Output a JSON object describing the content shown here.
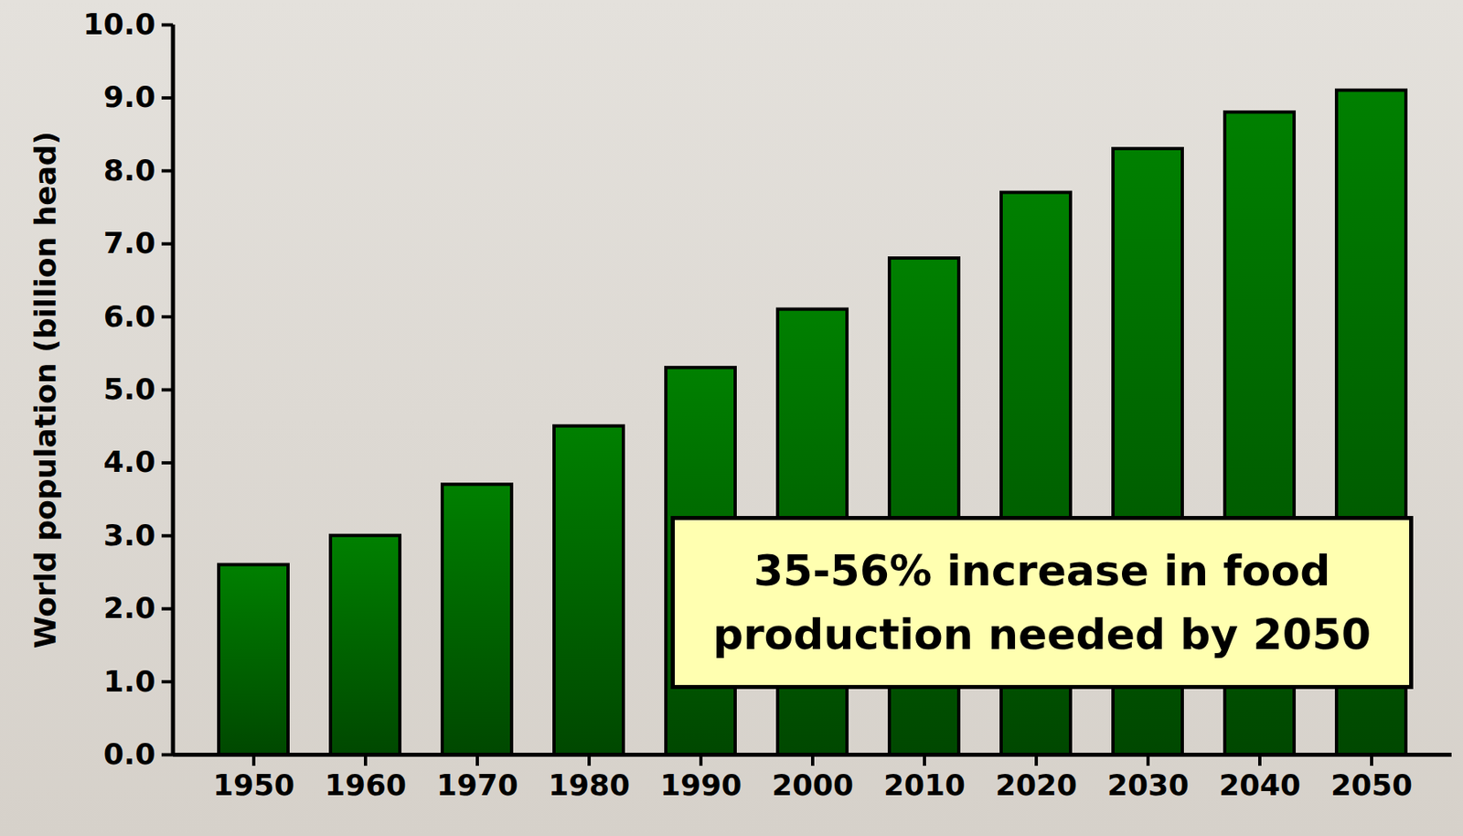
{
  "chart_data": {
    "type": "bar",
    "y_label": "World population (billion head)",
    "categories": [
      "1950",
      "1960",
      "1970",
      "1980",
      "1990",
      "2000",
      "2010",
      "2020",
      "2030",
      "2040",
      "2050"
    ],
    "values": [
      2.6,
      3.0,
      3.7,
      4.5,
      5.3,
      6.1,
      6.8,
      7.7,
      8.3,
      8.8,
      9.1
    ],
    "color": "#008000",
    "ylim": [
      0,
      10
    ],
    "yticks": [
      0,
      1,
      2,
      3,
      4,
      5,
      6,
      7,
      8,
      9,
      10
    ],
    "grid": false,
    "annotation": "35-56% increase in food production needed by 2050"
  }
}
